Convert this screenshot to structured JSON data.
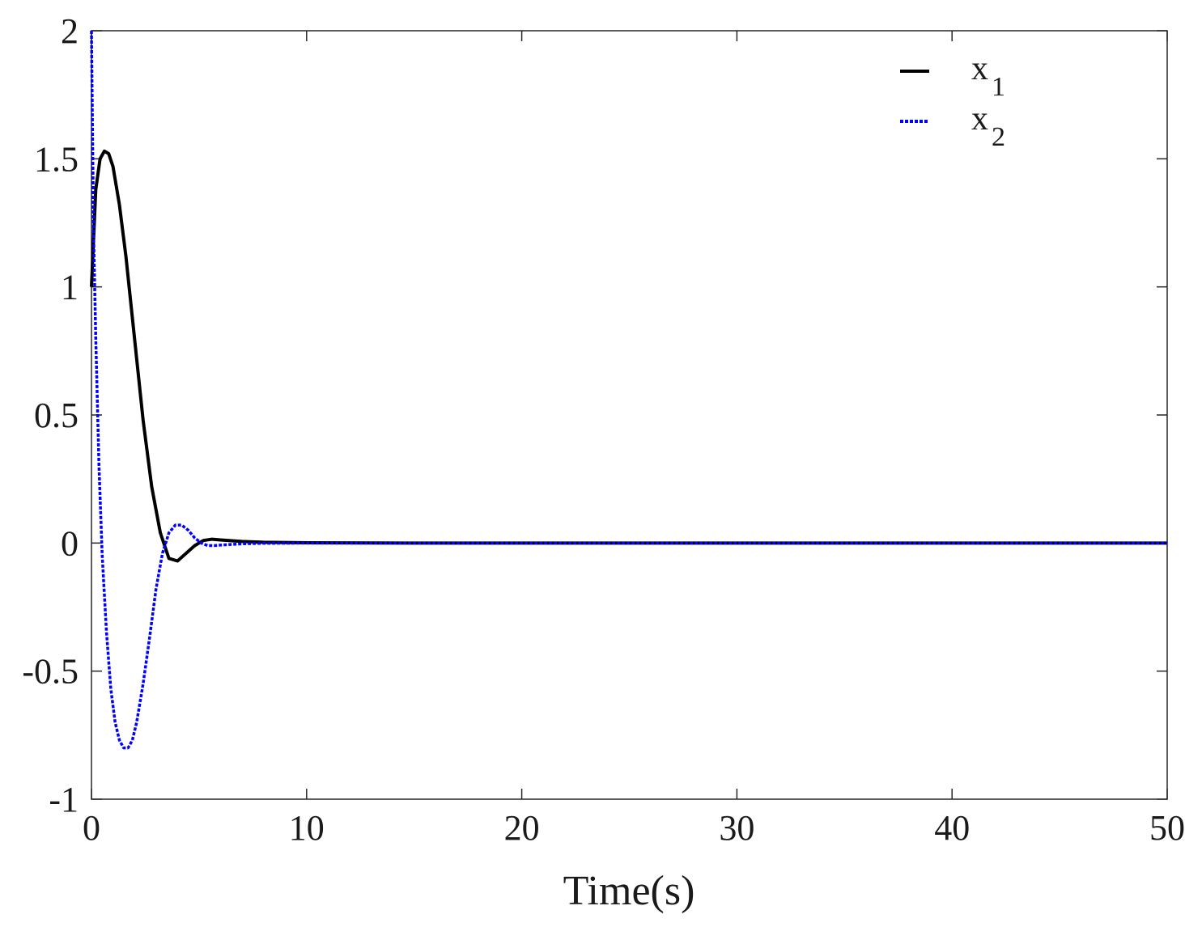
{
  "chart_data": {
    "type": "line",
    "title": "",
    "xlabel": "Time(s)",
    "ylabel": "",
    "xlim": [
      0,
      50
    ],
    "ylim": [
      -1,
      2
    ],
    "xticks": [
      0,
      10,
      20,
      30,
      40,
      50
    ],
    "xtick_labels": [
      "0",
      "10",
      "20",
      "30",
      "40",
      "50"
    ],
    "yticks": [
      -1,
      -0.5,
      0,
      0.5,
      1,
      1.5,
      2
    ],
    "ytick_labels": [
      "-1",
      "-0.5",
      "0",
      "0.5",
      "1",
      "1.5",
      "2"
    ],
    "grid": false,
    "legend_position": "top-right",
    "series": [
      {
        "name": "x1",
        "legend_base": "x",
        "legend_sub": "1",
        "color": "#000000",
        "style": "solid",
        "x": [
          0,
          0.2,
          0.4,
          0.6,
          0.8,
          1.0,
          1.3,
          1.6,
          2.0,
          2.4,
          2.8,
          3.2,
          3.6,
          4.0,
          4.4,
          4.8,
          5.2,
          5.6,
          6.0,
          7.0,
          8.0,
          10.0,
          15.0,
          20.0,
          30.0,
          40.0,
          50.0
        ],
        "y": [
          1.0,
          1.38,
          1.5,
          1.53,
          1.52,
          1.47,
          1.32,
          1.12,
          0.8,
          0.48,
          0.22,
          0.04,
          -0.06,
          -0.07,
          -0.04,
          -0.01,
          0.01,
          0.015,
          0.012,
          0.006,
          0.003,
          0.001,
          0.0,
          0.0,
          0.0,
          0.0,
          0.0
        ]
      },
      {
        "name": "x2",
        "legend_base": "x",
        "legend_sub": "2",
        "color": "#0000ff",
        "style": "dashed",
        "x": [
          0,
          0.1,
          0.2,
          0.35,
          0.5,
          0.7,
          0.9,
          1.1,
          1.3,
          1.5,
          1.7,
          1.9,
          2.1,
          2.4,
          2.7,
          3.0,
          3.3,
          3.6,
          3.9,
          4.2,
          4.5,
          4.8,
          5.1,
          5.4,
          5.7,
          6.0,
          7.0,
          8.0,
          10.0,
          15.0,
          20.0,
          30.0,
          40.0,
          50.0
        ],
        "y": [
          2.0,
          1.2,
          0.8,
          0.3,
          -0.05,
          -0.35,
          -0.57,
          -0.7,
          -0.77,
          -0.8,
          -0.8,
          -0.77,
          -0.7,
          -0.55,
          -0.37,
          -0.18,
          -0.04,
          0.04,
          0.07,
          0.07,
          0.05,
          0.02,
          0.0,
          -0.01,
          -0.01,
          -0.008,
          -0.003,
          -0.001,
          0.0,
          0.0,
          0.0,
          0.0,
          0.0,
          0.0
        ]
      }
    ]
  }
}
